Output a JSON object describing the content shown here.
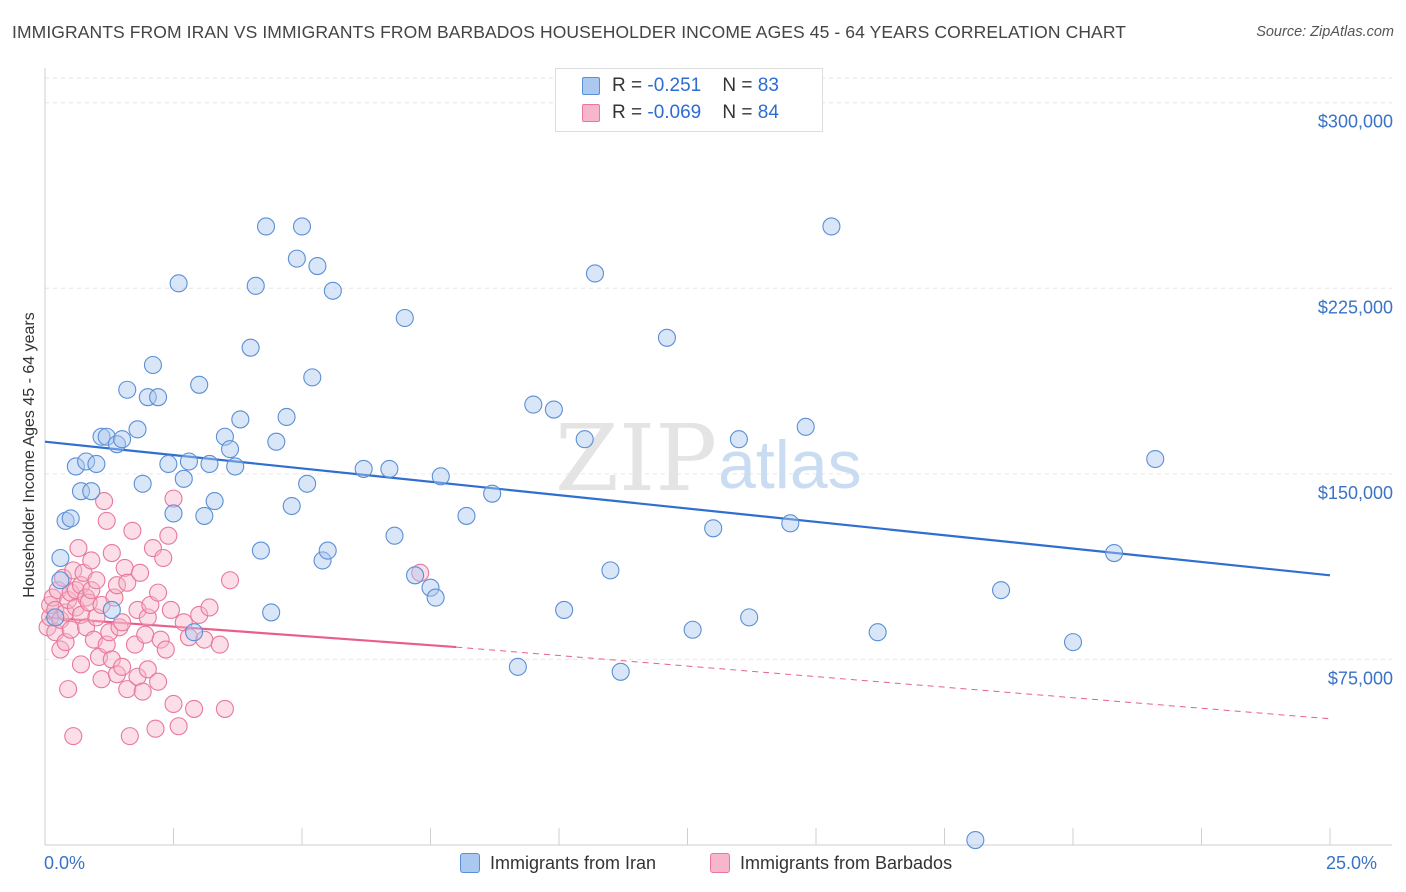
{
  "title": "IMMIGRANTS FROM IRAN VS IMMIGRANTS FROM BARBADOS HOUSEHOLDER INCOME AGES 45 - 64 YEARS CORRELATION CHART",
  "source": "Source: ZipAtlas.com",
  "watermark": {
    "zip": "ZIP",
    "atlas": "atlas"
  },
  "legend": {
    "iran": {
      "r_label": "R = ",
      "r_value": "-0.251",
      "n_label": "N = ",
      "n_value": "83"
    },
    "barbados": {
      "r_label": "R = ",
      "r_value": "-0.069",
      "n_label": "N = ",
      "n_value": "84"
    }
  },
  "colors": {
    "iran_fill": "#aac8f0",
    "iran_stroke": "#5b8fd6",
    "iran_line": "#2f6fcf",
    "barbados_fill": "#f7b6ca",
    "barbados_stroke": "#e8789c",
    "barbados_line": "#e8608a",
    "tick_label": "#3a73c6"
  },
  "chart_data": {
    "type": "scatter",
    "title": "IMMIGRANTS FROM IRAN VS IMMIGRANTS FROM BARBADOS HOUSEHOLDER INCOME AGES 45 - 64 YEARS CORRELATION CHART",
    "xlabel": "",
    "ylabel": "Householder Income Ages 45 - 64 years",
    "xlim": [
      0,
      25
    ],
    "ylim": [
      0,
      310000
    ],
    "x_tick_labels": [
      "0.0%",
      "25.0%"
    ],
    "y_ticks": [
      75000,
      150000,
      225000,
      300000
    ],
    "y_tick_labels": [
      "$75,000",
      "$150,000",
      "$225,000",
      "$300,000"
    ],
    "grid": true,
    "legend_position": "top-center",
    "series": [
      {
        "name": "Immigrants from Iran",
        "points": [
          [
            0.3,
            107000
          ],
          [
            0.3,
            116000
          ],
          [
            0.4,
            131000
          ],
          [
            0.5,
            132000
          ],
          [
            0.6,
            153000
          ],
          [
            0.7,
            143000
          ],
          [
            0.8,
            155000
          ],
          [
            0.9,
            143000
          ],
          [
            1.0,
            154000
          ],
          [
            1.1,
            165000
          ],
          [
            1.2,
            165000
          ],
          [
            1.3,
            95000
          ],
          [
            1.4,
            162000
          ],
          [
            1.5,
            164000
          ],
          [
            1.6,
            184000
          ],
          [
            1.8,
            168000
          ],
          [
            1.9,
            146000
          ],
          [
            2.0,
            181000
          ],
          [
            2.1,
            194000
          ],
          [
            2.2,
            181000
          ],
          [
            2.4,
            154000
          ],
          [
            2.5,
            134000
          ],
          [
            2.6,
            227000
          ],
          [
            2.7,
            148000
          ],
          [
            2.8,
            155000
          ],
          [
            2.9,
            86000
          ],
          [
            3.0,
            186000
          ],
          [
            3.1,
            133000
          ],
          [
            3.2,
            154000
          ],
          [
            3.3,
            139000
          ],
          [
            3.5,
            165000
          ],
          [
            3.6,
            160000
          ],
          [
            3.7,
            153000
          ],
          [
            3.8,
            172000
          ],
          [
            4.0,
            201000
          ],
          [
            4.1,
            226000
          ],
          [
            4.2,
            119000
          ],
          [
            4.3,
            250000
          ],
          [
            4.4,
            94000
          ],
          [
            4.5,
            163000
          ],
          [
            4.7,
            173000
          ],
          [
            4.8,
            137000
          ],
          [
            4.9,
            237000
          ],
          [
            5.0,
            250000
          ],
          [
            5.1,
            146000
          ],
          [
            5.2,
            189000
          ],
          [
            5.3,
            234000
          ],
          [
            5.4,
            115000
          ],
          [
            5.5,
            119000
          ],
          [
            5.6,
            224000
          ],
          [
            6.2,
            152000
          ],
          [
            6.7,
            152000
          ],
          [
            6.8,
            125000
          ],
          [
            7.0,
            213000
          ],
          [
            7.2,
            109000
          ],
          [
            7.5,
            104000
          ],
          [
            7.6,
            100000
          ],
          [
            7.7,
            149000
          ],
          [
            8.2,
            133000
          ],
          [
            8.7,
            142000
          ],
          [
            9.2,
            72000
          ],
          [
            9.5,
            178000
          ],
          [
            9.9,
            176000
          ],
          [
            10.1,
            95000
          ],
          [
            10.5,
            164000
          ],
          [
            10.7,
            231000
          ],
          [
            11.0,
            111000
          ],
          [
            11.2,
            70000
          ],
          [
            12.1,
            205000
          ],
          [
            12.6,
            87000
          ],
          [
            13.0,
            128000
          ],
          [
            13.5,
            164000
          ],
          [
            13.7,
            92000
          ],
          [
            14.5,
            130000
          ],
          [
            14.8,
            169000
          ],
          [
            15.3,
            250000
          ],
          [
            16.2,
            86000
          ],
          [
            18.1,
            2000
          ],
          [
            18.6,
            103000
          ],
          [
            20.0,
            82000
          ],
          [
            20.8,
            118000
          ],
          [
            21.6,
            156000
          ],
          [
            0.2,
            92000
          ]
        ]
      },
      {
        "name": "Immigrants from Barbados",
        "points": [
          [
            0.05,
            88000
          ],
          [
            0.1,
            92000
          ],
          [
            0.1,
            97000
          ],
          [
            0.15,
            100000
          ],
          [
            0.2,
            86000
          ],
          [
            0.2,
            95000
          ],
          [
            0.25,
            103000
          ],
          [
            0.3,
            79000
          ],
          [
            0.3,
            91000
          ],
          [
            0.35,
            108000
          ],
          [
            0.4,
            82000
          ],
          [
            0.4,
            94000
          ],
          [
            0.45,
            99000
          ],
          [
            0.5,
            102000
          ],
          [
            0.5,
            87000
          ],
          [
            0.55,
            111000
          ],
          [
            0.6,
            96000
          ],
          [
            0.6,
            103000
          ],
          [
            0.65,
            120000
          ],
          [
            0.7,
            105000
          ],
          [
            0.7,
            93000
          ],
          [
            0.75,
            110000
          ],
          [
            0.8,
            100000
          ],
          [
            0.8,
            88000
          ],
          [
            0.85,
            98000
          ],
          [
            0.9,
            115000
          ],
          [
            0.9,
            103000
          ],
          [
            0.95,
            83000
          ],
          [
            1.0,
            92000
          ],
          [
            1.0,
            107000
          ],
          [
            1.05,
            76000
          ],
          [
            1.1,
            97000
          ],
          [
            1.1,
            67000
          ],
          [
            1.15,
            139000
          ],
          [
            1.2,
            131000
          ],
          [
            1.2,
            81000
          ],
          [
            1.25,
            86000
          ],
          [
            1.3,
            75000
          ],
          [
            1.3,
            118000
          ],
          [
            1.35,
            100000
          ],
          [
            1.4,
            69000
          ],
          [
            1.4,
            105000
          ],
          [
            1.45,
            88000
          ],
          [
            1.5,
            90000
          ],
          [
            1.5,
            72000
          ],
          [
            1.55,
            112000
          ],
          [
            1.6,
            63000
          ],
          [
            1.6,
            106000
          ],
          [
            1.65,
            44000
          ],
          [
            1.7,
            127000
          ],
          [
            1.75,
            81000
          ],
          [
            1.8,
            95000
          ],
          [
            1.8,
            68000
          ],
          [
            1.85,
            110000
          ],
          [
            1.9,
            62000
          ],
          [
            1.95,
            85000
          ],
          [
            2.0,
            92000
          ],
          [
            2.0,
            71000
          ],
          [
            2.05,
            97000
          ],
          [
            2.1,
            120000
          ],
          [
            2.15,
            47000
          ],
          [
            2.2,
            102000
          ],
          [
            2.2,
            66000
          ],
          [
            2.25,
            83000
          ],
          [
            2.3,
            116000
          ],
          [
            2.35,
            79000
          ],
          [
            2.4,
            125000
          ],
          [
            2.45,
            95000
          ],
          [
            2.5,
            140000
          ],
          [
            2.5,
            57000
          ],
          [
            2.6,
            48000
          ],
          [
            2.7,
            90000
          ],
          [
            2.8,
            84000
          ],
          [
            2.9,
            55000
          ],
          [
            3.0,
            93000
          ],
          [
            3.1,
            83000
          ],
          [
            3.2,
            96000
          ],
          [
            3.4,
            81000
          ],
          [
            3.5,
            55000
          ],
          [
            3.6,
            107000
          ],
          [
            0.45,
            63000
          ],
          [
            0.55,
            44000
          ],
          [
            0.7,
            73000
          ],
          [
            7.3,
            110000
          ]
        ]
      }
    ],
    "trend_lines": [
      {
        "series": "Immigrants from Iran",
        "x": [
          0,
          25
        ],
        "y": [
          163000,
          109000
        ],
        "style": "solid"
      },
      {
        "series": "Immigrants from Barbados",
        "x": [
          0,
          8
        ],
        "y": [
          92000,
          80000
        ],
        "style": "solid"
      },
      {
        "series": "Immigrants from Barbados",
        "x": [
          8,
          25
        ],
        "y": [
          80000,
          51000
        ],
        "style": "dashed"
      }
    ]
  },
  "bottom_legend": {
    "iran": "Immigrants from Iran",
    "barbados": "Immigrants from Barbados"
  }
}
